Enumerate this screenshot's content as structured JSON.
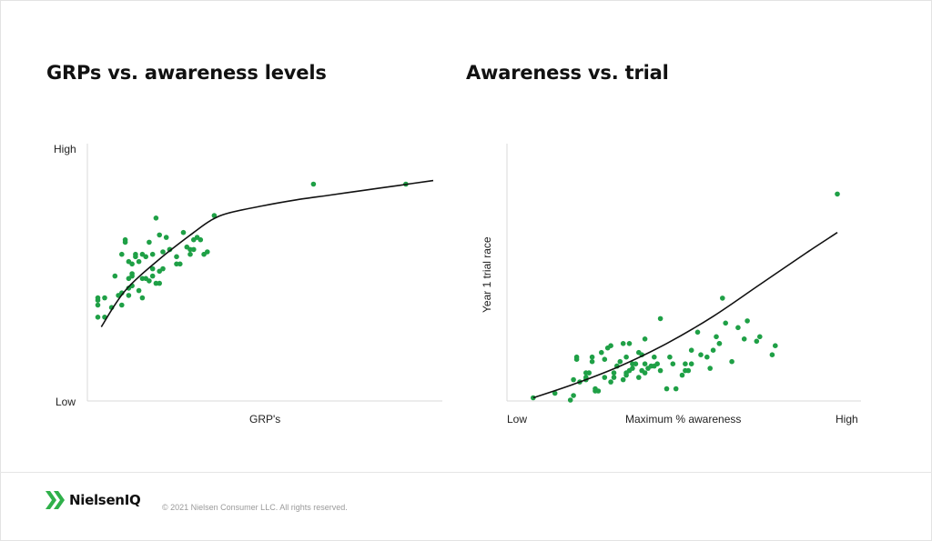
{
  "chart_data": [
    {
      "type": "scatter",
      "title": "GRPs vs. awareness levels",
      "xlabel": "GRP's",
      "ylabel": "",
      "y_ticks": [
        "High",
        "Low"
      ],
      "xlim": [
        0,
        100
      ],
      "ylim": [
        0,
        100
      ],
      "colors": {
        "points": "#1fa046",
        "curve": "#111111"
      },
      "points": {
        "x": [
          2,
          2,
          2,
          2,
          4,
          4,
          6,
          7,
          8,
          9,
          9,
          9,
          10,
          10,
          11,
          11,
          11,
          11,
          12,
          12,
          12,
          12,
          13,
          13,
          14,
          14,
          15,
          15,
          15,
          16,
          16,
          17,
          17,
          18,
          18,
          18,
          19,
          19,
          20,
          20,
          20,
          21,
          21,
          22,
          23,
          23,
          25,
          25,
          26,
          27,
          28,
          29,
          29,
          30,
          30,
          31,
          32,
          33,
          34,
          36,
          65,
          92
        ],
        "y": [
          34,
          31,
          33,
          26,
          34,
          26,
          30,
          43,
          35,
          36,
          31,
          52,
          58,
          57,
          49,
          42,
          38,
          35,
          48,
          44,
          39,
          43,
          51,
          52,
          37,
          49,
          42,
          34,
          52,
          51,
          42,
          57,
          41,
          46,
          52,
          43,
          67,
          40,
          60,
          45,
          40,
          46,
          53,
          59,
          54,
          54,
          51,
          48,
          48,
          61,
          55,
          52,
          54,
          58,
          54,
          59,
          58,
          52,
          53,
          68,
          81,
          81
        ]
      },
      "curve": {
        "x": [
          3,
          10,
          20,
          30,
          35,
          40,
          50,
          60,
          70,
          80,
          90,
          100
        ],
        "y": [
          22,
          37,
          50,
          61,
          66,
          69,
          72,
          74.5,
          76.5,
          78.5,
          80.5,
          82.5
        ]
      }
    },
    {
      "type": "scatter",
      "title": "Awareness vs. trial",
      "xlabel": "Maximum % awareness",
      "ylabel": "Year 1 trial race",
      "x_ticks": [
        "Low",
        "High"
      ],
      "xlim": [
        0,
        100
      ],
      "ylim": [
        0,
        100
      ],
      "colors": {
        "points": "#1fa046",
        "curve": "#111111"
      },
      "points": {
        "x": [
          2,
          9,
          14,
          15,
          15,
          16,
          16,
          17,
          19,
          19,
          19,
          20,
          21,
          21,
          22,
          22,
          23,
          24,
          25,
          25,
          26,
          27,
          27,
          28,
          28,
          29,
          29,
          30,
          31,
          31,
          32,
          32,
          32,
          33,
          33,
          34,
          34,
          35,
          36,
          36,
          37,
          37,
          38,
          38,
          38,
          39,
          40,
          41,
          41,
          42,
          43,
          43,
          45,
          46,
          47,
          48,
          50,
          51,
          51,
          52,
          53,
          53,
          55,
          56,
          58,
          59,
          60,
          61,
          62,
          62,
          63,
          64,
          66,
          68,
          70,
          71,
          74,
          75,
          79,
          80,
          100
        ],
        "y": [
          1,
          3,
          0,
          2,
          9,
          18,
          19,
          8,
          9,
          10,
          12,
          12,
          19,
          17,
          5,
          4,
          4,
          21,
          18,
          10,
          23,
          8,
          24,
          10,
          12,
          15,
          15,
          17,
          25,
          9,
          19,
          12,
          11,
          25,
          13,
          14,
          16,
          16,
          21,
          10,
          13,
          20,
          27,
          12,
          16,
          14,
          15,
          15,
          19,
          16,
          13,
          36,
          5,
          19,
          16,
          5,
          11,
          13,
          16,
          13,
          22,
          16,
          30,
          20,
          19,
          14,
          22,
          28,
          25,
          25,
          45,
          34,
          17,
          32,
          27,
          35,
          26,
          28,
          20,
          24,
          91
        ]
      },
      "curve": {
        "x": [
          2,
          15,
          30,
          45,
          60,
          75,
          90,
          100
        ],
        "y": [
          1,
          7,
          15,
          25,
          37,
          51,
          65,
          74
        ]
      }
    }
  ],
  "footer": {
    "brand": "NielsenIQ",
    "copyright": "© 2021 Nielsen Consumer LLC. All rights reserved."
  }
}
